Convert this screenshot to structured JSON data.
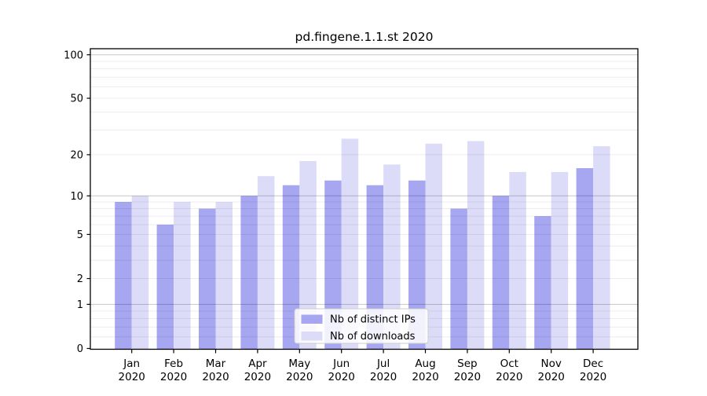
{
  "figure": {
    "title": "pd.fingene.1.1.st 2020"
  },
  "chart_data": {
    "type": "bar",
    "title": "pd.fingene.1.1.st 2020",
    "categories": [
      "Jan 2020",
      "Feb 2020",
      "Mar 2020",
      "Apr 2020",
      "May 2020",
      "Jun 2020",
      "Jul 2020",
      "Aug 2020",
      "Sep 2020",
      "Oct 2020",
      "Nov 2020",
      "Dec 2020"
    ],
    "series": [
      {
        "name": "Nb of distinct IPs",
        "color": "#a6a6f1",
        "values": [
          9,
          6,
          8,
          10,
          12,
          13,
          12,
          13,
          8,
          10,
          7,
          16
        ]
      },
      {
        "name": "Nb of downloads",
        "color": "#dcdcf8",
        "values": [
          10,
          9,
          9,
          14,
          18,
          26,
          17,
          24,
          25,
          15,
          15,
          23
        ]
      }
    ],
    "xlabel": "",
    "ylabel": "",
    "yscale": "log1p",
    "ylim": [
      0,
      110
    ],
    "yticks": [
      0,
      1,
      2,
      5,
      10,
      20,
      50,
      100
    ],
    "major_gridlines": [
      1,
      10,
      100
    ],
    "minor_gridlines": [
      0.2,
      0.4,
      0.6,
      0.8,
      2,
      3,
      4,
      5,
      6,
      7,
      8,
      9,
      20,
      30,
      40,
      50,
      60,
      70,
      80,
      90
    ],
    "grid": true,
    "legend": {
      "position": "bottom-center",
      "entries": [
        "Nb of distinct IPs",
        "Nb of downloads"
      ]
    },
    "style": {
      "frame_color": "#000000",
      "text_color": "#000000",
      "grid_major_color": "rgba(0,0,0,0.22)",
      "grid_minor_color": "rgba(0,0,0,0.075)",
      "legend_border_color": "#cccccc",
      "legend_bg_color": "#ffffff"
    }
  }
}
